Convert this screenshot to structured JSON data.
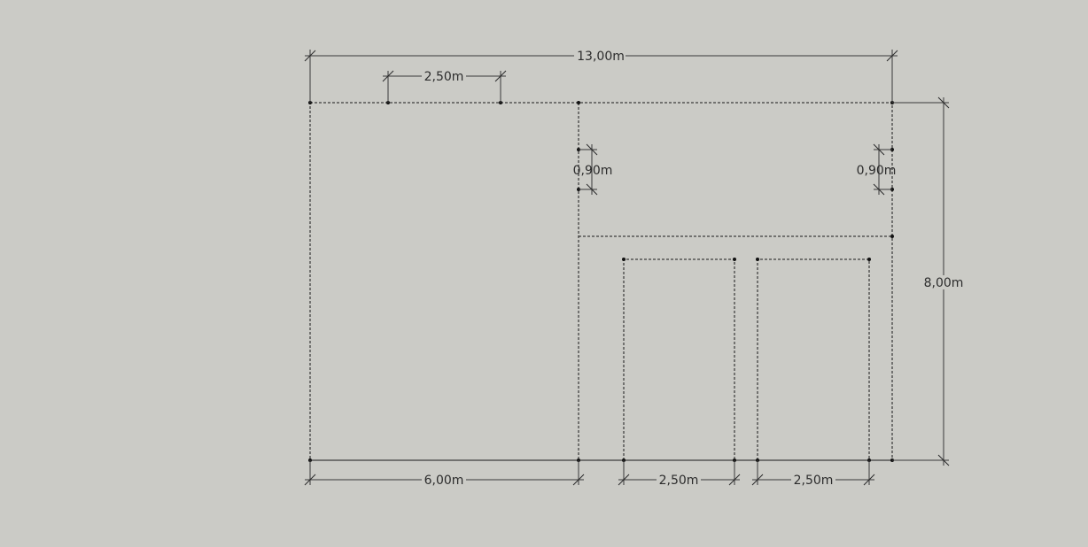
{
  "dimensions": {
    "overall_width": "13,00m",
    "overall_depth": "8,00m",
    "top_opening": "2,50m",
    "left_offset": "0,90m",
    "right_offset": "0,90m",
    "bottom_left": "6,00m",
    "bottom_mid": "2,50m",
    "bottom_right": "2,50m"
  },
  "colors": {
    "background": "#cbcbc6",
    "line": "#1a1a1a"
  }
}
